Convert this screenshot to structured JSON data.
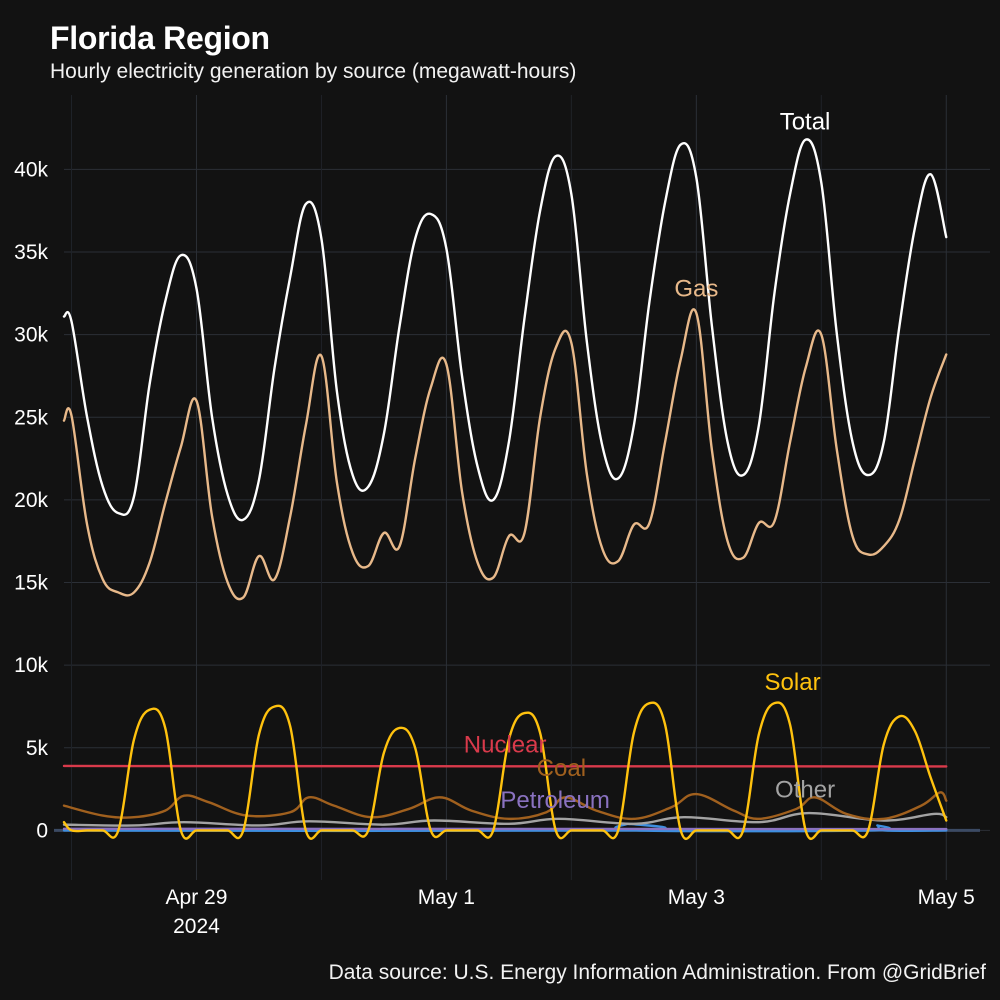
{
  "header": {
    "title": "Florida Region",
    "subtitle": "Hourly electricity generation by source (megawatt-hours)"
  },
  "footer": {
    "caption": "Data source: U.S. Energy Information Administration. From @GridBrief"
  },
  "chart_data": {
    "type": "line",
    "x_unit": "day offset from Apr 28 2024 00:00 (daily points at 00,03,06,09,12,15,18,21 h)",
    "xlim": [
      -0.06,
      7.35
    ],
    "ylim": [
      -3000,
      44500
    ],
    "y_ticks": [
      {
        "value": 0,
        "label": "0"
      },
      {
        "value": 5000,
        "label": "5k"
      },
      {
        "value": 10000,
        "label": "10k"
      },
      {
        "value": 15000,
        "label": "15k"
      },
      {
        "value": 20000,
        "label": "20k"
      },
      {
        "value": 25000,
        "label": "25k"
      },
      {
        "value": 30000,
        "label": "30k"
      },
      {
        "value": 35000,
        "label": "35k"
      },
      {
        "value": 40000,
        "label": "40k"
      }
    ],
    "x_ticks": [
      {
        "value": 1,
        "label": "Apr 29",
        "sublabel": "2024"
      },
      {
        "value": 3,
        "label": "May 1",
        "sublabel": ""
      },
      {
        "value": 5,
        "label": "May 3",
        "sublabel": ""
      },
      {
        "value": 7,
        "label": "May 5",
        "sublabel": ""
      }
    ],
    "grid": true,
    "legend": "direct labels",
    "series": [
      {
        "name": "Total",
        "color": "#ffffff",
        "label_at": [
          5.87,
          42400
        ],
        "values": [
          [
            -0.06,
            31100
          ],
          [
            0,
            30800
          ],
          [
            0.125,
            25000
          ],
          [
            0.25,
            20800
          ],
          [
            0.375,
            19200
          ],
          [
            0.5,
            20200
          ],
          [
            0.625,
            27000
          ],
          [
            0.75,
            32000
          ],
          [
            0.875,
            34800
          ],
          [
            1,
            32800
          ],
          [
            1.125,
            25000
          ],
          [
            1.25,
            20300
          ],
          [
            1.375,
            18800
          ],
          [
            1.5,
            21200
          ],
          [
            1.625,
            28000
          ],
          [
            1.75,
            33500
          ],
          [
            1.875,
            37900
          ],
          [
            2,
            35800
          ],
          [
            2.125,
            26500
          ],
          [
            2.25,
            21500
          ],
          [
            2.375,
            20800
          ],
          [
            2.5,
            24000
          ],
          [
            2.625,
            30500
          ],
          [
            2.75,
            35800
          ],
          [
            2.875,
            37300
          ],
          [
            3,
            35200
          ],
          [
            3.125,
            27500
          ],
          [
            3.25,
            22000
          ],
          [
            3.375,
            20000
          ],
          [
            3.5,
            23500
          ],
          [
            3.625,
            31000
          ],
          [
            3.75,
            37500
          ],
          [
            3.875,
            40800
          ],
          [
            4,
            38500
          ],
          [
            4.125,
            29500
          ],
          [
            4.25,
            23200
          ],
          [
            4.375,
            21300
          ],
          [
            4.5,
            24500
          ],
          [
            4.625,
            32000
          ],
          [
            4.75,
            38000
          ],
          [
            4.875,
            41500
          ],
          [
            5,
            39500
          ],
          [
            5.125,
            30500
          ],
          [
            5.25,
            23500
          ],
          [
            5.375,
            21500
          ],
          [
            5.5,
            24500
          ],
          [
            5.625,
            32500
          ],
          [
            5.75,
            38500
          ],
          [
            5.875,
            41800
          ],
          [
            6,
            39200
          ],
          [
            6.125,
            30000
          ],
          [
            6.25,
            23500
          ],
          [
            6.375,
            21500
          ],
          [
            6.5,
            23500
          ],
          [
            6.625,
            30500
          ],
          [
            6.75,
            36500
          ],
          [
            6.875,
            39700
          ],
          [
            7,
            35900
          ]
        ]
      },
      {
        "name": "Gas",
        "color": "#e8b98a",
        "label_at": [
          5.0,
          32300
        ],
        "values": [
          [
            -0.06,
            24800
          ],
          [
            0,
            25100
          ],
          [
            0.125,
            18500
          ],
          [
            0.25,
            15200
          ],
          [
            0.375,
            14400
          ],
          [
            0.5,
            14400
          ],
          [
            0.625,
            16200
          ],
          [
            0.75,
            19800
          ],
          [
            0.875,
            23200
          ],
          [
            1,
            26000
          ],
          [
            1.125,
            19000
          ],
          [
            1.25,
            15000
          ],
          [
            1.375,
            14100
          ],
          [
            1.5,
            16600
          ],
          [
            1.625,
            15200
          ],
          [
            1.75,
            19000
          ],
          [
            1.875,
            24500
          ],
          [
            2,
            28700
          ],
          [
            2.125,
            21000
          ],
          [
            2.25,
            16800
          ],
          [
            2.375,
            16000
          ],
          [
            2.5,
            18000
          ],
          [
            2.625,
            17200
          ],
          [
            2.75,
            22500
          ],
          [
            2.875,
            26800
          ],
          [
            3,
            28200
          ],
          [
            3.125,
            20500
          ],
          [
            3.25,
            16200
          ],
          [
            3.375,
            15300
          ],
          [
            3.5,
            17800
          ],
          [
            3.625,
            18000
          ],
          [
            3.75,
            25000
          ],
          [
            3.875,
            29200
          ],
          [
            4,
            29500
          ],
          [
            4.125,
            21500
          ],
          [
            4.25,
            17000
          ],
          [
            4.375,
            16300
          ],
          [
            4.5,
            18500
          ],
          [
            4.625,
            18600
          ],
          [
            4.75,
            23500
          ],
          [
            4.875,
            28500
          ],
          [
            5,
            31300
          ],
          [
            5.125,
            23000
          ],
          [
            5.25,
            17500
          ],
          [
            5.375,
            16500
          ],
          [
            5.5,
            18600
          ],
          [
            5.625,
            18700
          ],
          [
            5.75,
            23500
          ],
          [
            5.875,
            28000
          ],
          [
            6,
            30000
          ],
          [
            6.125,
            23000
          ],
          [
            6.25,
            17800
          ],
          [
            6.375,
            16700
          ],
          [
            6.5,
            17200
          ],
          [
            6.625,
            18800
          ],
          [
            6.75,
            22500
          ],
          [
            6.875,
            26200
          ],
          [
            7,
            28800
          ]
        ]
      },
      {
        "name": "Solar",
        "color": "#ffc20e",
        "label_at": [
          5.77,
          8500
        ],
        "values": [
          [
            -0.06,
            500
          ],
          [
            0,
            0
          ],
          [
            0.125,
            0
          ],
          [
            0.25,
            0
          ],
          [
            0.375,
            0
          ],
          [
            0.5,
            5500
          ],
          [
            0.625,
            7300
          ],
          [
            0.75,
            6200
          ],
          [
            0.875,
            0
          ],
          [
            1,
            0
          ],
          [
            1.125,
            0
          ],
          [
            1.25,
            0
          ],
          [
            1.375,
            0
          ],
          [
            1.5,
            5800
          ],
          [
            1.625,
            7500
          ],
          [
            1.75,
            6300
          ],
          [
            1.875,
            0
          ],
          [
            2,
            0
          ],
          [
            2.125,
            0
          ],
          [
            2.25,
            0
          ],
          [
            2.375,
            0
          ],
          [
            2.5,
            4700
          ],
          [
            2.625,
            6200
          ],
          [
            2.75,
            5000
          ],
          [
            2.875,
            0
          ],
          [
            3,
            0
          ],
          [
            3.125,
            0
          ],
          [
            3.25,
            0
          ],
          [
            3.375,
            0
          ],
          [
            3.5,
            5500
          ],
          [
            3.625,
            7100
          ],
          [
            3.75,
            5900
          ],
          [
            3.875,
            0
          ],
          [
            4,
            0
          ],
          [
            4.125,
            0
          ],
          [
            4.25,
            0
          ],
          [
            4.375,
            0
          ],
          [
            4.5,
            5900
          ],
          [
            4.625,
            7700
          ],
          [
            4.75,
            6400
          ],
          [
            4.875,
            0
          ],
          [
            5,
            0
          ],
          [
            5.125,
            0
          ],
          [
            5.25,
            0
          ],
          [
            5.375,
            0
          ],
          [
            5.5,
            5800
          ],
          [
            5.625,
            7700
          ],
          [
            5.75,
            6400
          ],
          [
            5.875,
            0
          ],
          [
            6,
            0
          ],
          [
            6.125,
            0
          ],
          [
            6.25,
            0
          ],
          [
            6.375,
            0
          ],
          [
            6.5,
            5200
          ],
          [
            6.625,
            6900
          ],
          [
            6.75,
            6000
          ],
          [
            6.875,
            3200
          ],
          [
            7,
            600
          ]
        ]
      },
      {
        "name": "Nuclear",
        "color": "#d93a4b",
        "label_at": [
          3.47,
          4700
        ],
        "values": [
          [
            -0.06,
            3900
          ],
          [
            1.5,
            3890
          ],
          [
            3.5,
            3880
          ],
          [
            5.5,
            3880
          ],
          [
            7,
            3870
          ]
        ]
      },
      {
        "name": "Coal",
        "color": "#a0601e",
        "label_at": [
          3.92,
          3300
        ],
        "values": [
          [
            -0.06,
            1500
          ],
          [
            0.25,
            900
          ],
          [
            0.5,
            800
          ],
          [
            0.75,
            1200
          ],
          [
            0.9,
            2100
          ],
          [
            1.1,
            1700
          ],
          [
            1.4,
            900
          ],
          [
            1.75,
            1100
          ],
          [
            1.9,
            2000
          ],
          [
            2.1,
            1500
          ],
          [
            2.4,
            800
          ],
          [
            2.7,
            1300
          ],
          [
            2.95,
            2000
          ],
          [
            3.2,
            1200
          ],
          [
            3.5,
            700
          ],
          [
            3.8,
            1100
          ],
          [
            3.95,
            2000
          ],
          [
            4.2,
            1200
          ],
          [
            4.5,
            700
          ],
          [
            4.8,
            1400
          ],
          [
            5.0,
            2200
          ],
          [
            5.3,
            1200
          ],
          [
            5.5,
            700
          ],
          [
            5.8,
            1300
          ],
          [
            5.95,
            2000
          ],
          [
            6.2,
            1000
          ],
          [
            6.5,
            700
          ],
          [
            6.8,
            1500
          ],
          [
            6.95,
            2300
          ],
          [
            7,
            1800
          ]
        ]
      },
      {
        "name": "Other",
        "color": "#a3a3a3",
        "label_at": [
          5.87,
          2000
        ],
        "values": [
          [
            -0.06,
            350
          ],
          [
            0.5,
            300
          ],
          [
            0.9,
            500
          ],
          [
            1.5,
            300
          ],
          [
            1.9,
            550
          ],
          [
            2.5,
            350
          ],
          [
            2.9,
            600
          ],
          [
            3.5,
            400
          ],
          [
            3.9,
            700
          ],
          [
            4.5,
            400
          ],
          [
            4.9,
            800
          ],
          [
            5.5,
            500
          ],
          [
            5.9,
            1050
          ],
          [
            6.5,
            600
          ],
          [
            6.9,
            1000
          ],
          [
            7,
            800
          ]
        ]
      },
      {
        "name": "Petroleum",
        "color": "#8a72c0",
        "label_at": [
          3.87,
          1350
        ],
        "values": [
          [
            -0.06,
            100
          ],
          [
            7,
            80
          ]
        ]
      },
      {
        "name": "",
        "color": "#3d8fe0",
        "label_at": null,
        "values": [
          [
            -0.06,
            0
          ],
          [
            4.38,
            0
          ],
          [
            4.45,
            400
          ],
          [
            4.52,
            0
          ],
          [
            6.38,
            0
          ],
          [
            6.45,
            300
          ],
          [
            6.52,
            0
          ],
          [
            7,
            0
          ]
        ]
      }
    ]
  }
}
